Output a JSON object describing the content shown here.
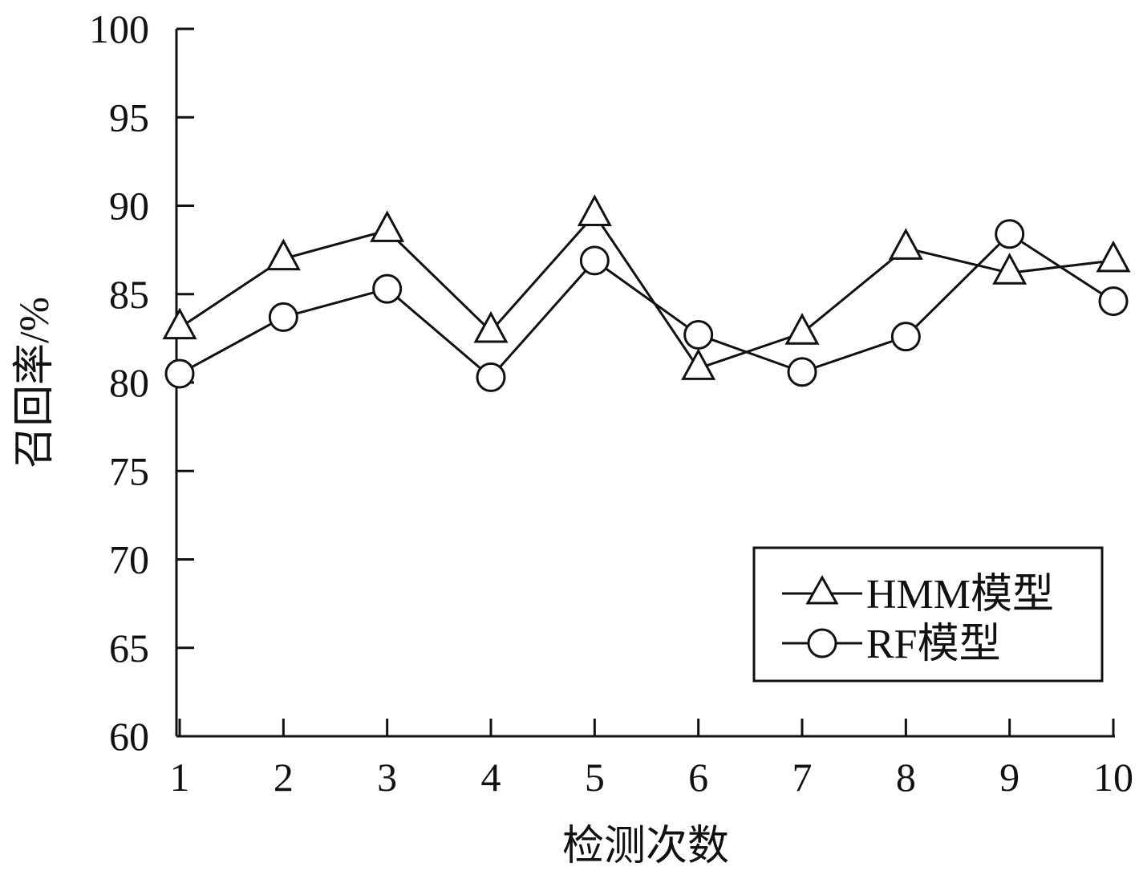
{
  "chart_data": {
    "type": "line",
    "title": "",
    "xlabel": "检测次数",
    "ylabel": "召回率/%",
    "categories": [
      "1",
      "2",
      "3",
      "4",
      "5",
      "6",
      "7",
      "8",
      "9",
      "10"
    ],
    "x": [
      1,
      2,
      3,
      4,
      5,
      6,
      7,
      8,
      9,
      10
    ],
    "ylim": [
      60,
      100
    ],
    "yticks": [
      "60",
      "65",
      "70",
      "75",
      "80",
      "85",
      "90",
      "95",
      "100"
    ],
    "grid": false,
    "legend_position": "bottom-right",
    "series": [
      {
        "name": "HMM模型",
        "marker": "triangle",
        "color": "#111111",
        "values": [
          83.1,
          87.0,
          88.6,
          82.9,
          89.5,
          80.8,
          82.8,
          87.6,
          86.2,
          86.9
        ]
      },
      {
        "name": "RF模型",
        "marker": "circle",
        "color": "#111111",
        "values": [
          80.5,
          83.7,
          85.3,
          80.3,
          86.9,
          82.7,
          80.6,
          82.6,
          88.4,
          84.6
        ]
      }
    ]
  }
}
